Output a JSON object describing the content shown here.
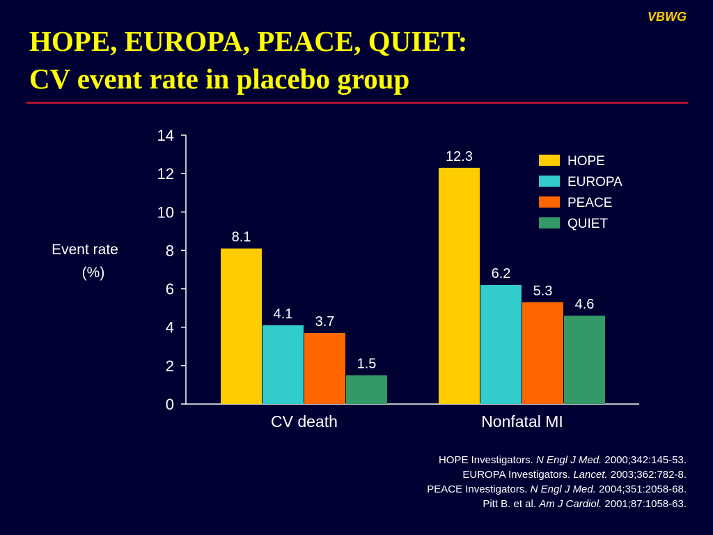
{
  "brand": "VBWG",
  "title": {
    "line1": "HOPE, EUROPA, PEACE, QUIET:",
    "line2": "CV event rate in placebo group"
  },
  "colors": {
    "background": "#000033",
    "title": "#ffff00",
    "rule": "#b01030"
  },
  "chart_data": {
    "type": "bar",
    "categories": [
      "CV death",
      "Nonfatal MI"
    ],
    "series": [
      {
        "name": "HOPE",
        "color": "#ffcc00",
        "values": [
          8.1,
          12.3
        ],
        "labels": [
          "8.1",
          "12.3"
        ]
      },
      {
        "name": "EUROPA",
        "color": "#33cccc",
        "values": [
          4.1,
          6.2
        ],
        "labels": [
          "4.1",
          "6.2"
        ]
      },
      {
        "name": "PEACE",
        "color": "#ff6600",
        "values": [
          3.7,
          5.3
        ],
        "labels": [
          "3.7",
          "5.3"
        ]
      },
      {
        "name": "QUIET",
        "color": "#339966",
        "values": [
          1.5,
          4.6
        ],
        "labels": [
          "1.5",
          "4.6"
        ]
      }
    ],
    "ylabel_line1": "Event rate",
    "ylabel_line2": "(%)",
    "ylim": [
      0,
      14
    ],
    "yticks": [
      0,
      2,
      4,
      6,
      8,
      10,
      12,
      14
    ],
    "grid": false,
    "legend_position": "top-right"
  },
  "references": [
    {
      "pre": "HOPE Investigators. ",
      "journal": "N Engl J Med.",
      "post": " 2000;342:145-53."
    },
    {
      "pre": "EUROPA Investigators. ",
      "journal": "Lancet.",
      "post": " 2003;362:782-8."
    },
    {
      "pre": "PEACE Investigators. ",
      "journal": "N Engl J Med.",
      "post": " 2004;351:2058-68."
    },
    {
      "pre": "Pitt B. et al. ",
      "journal": "Am J Cardiol.",
      "post": " 2001;87:1058-63."
    }
  ]
}
